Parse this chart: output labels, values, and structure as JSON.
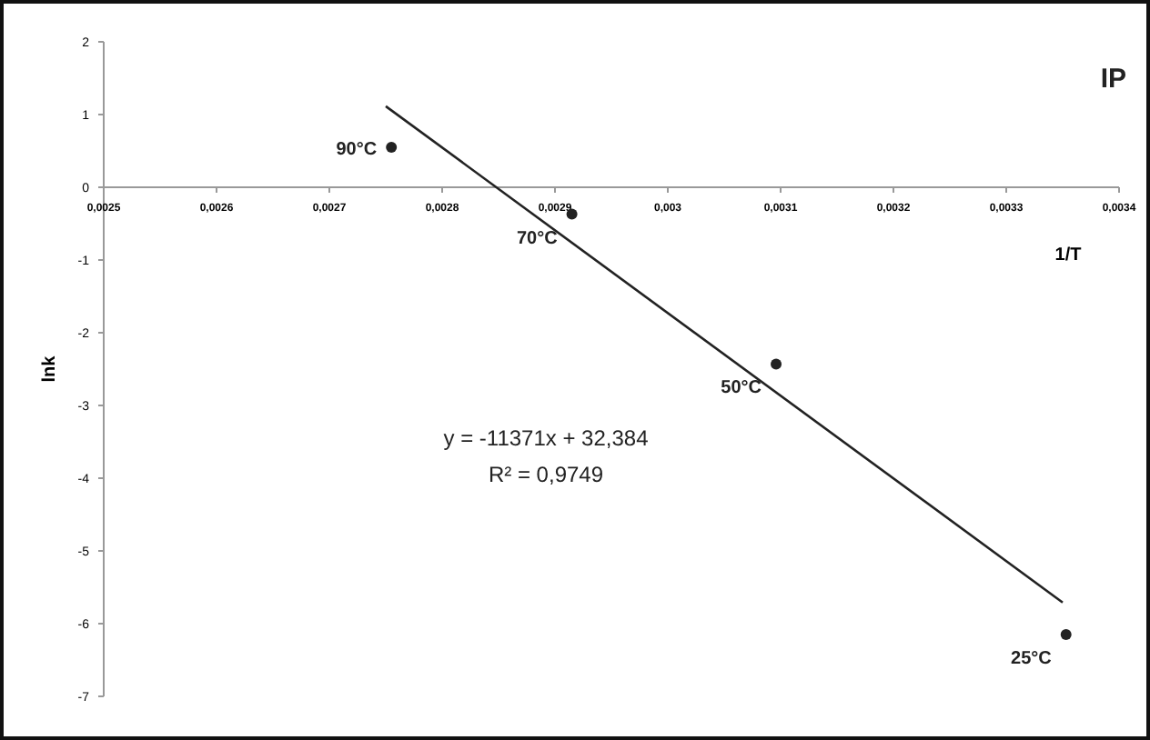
{
  "chart_data": {
    "type": "scatter",
    "title": "IP",
    "xlabel": "1/T",
    "ylabel": "lnk",
    "xlim": [
      0.0025,
      0.0034
    ],
    "xticks": [
      {
        "value": 0.0025,
        "label": "0,0025"
      },
      {
        "value": 0.0026,
        "label": "0,0026"
      },
      {
        "value": 0.0027,
        "label": "0,0027"
      },
      {
        "value": 0.0028,
        "label": "0,0028"
      },
      {
        "value": 0.0029,
        "label": "0,0029"
      },
      {
        "value": 0.003,
        "label": "0,003"
      },
      {
        "value": 0.0031,
        "label": "0,0031"
      },
      {
        "value": 0.0032,
        "label": "0,0032"
      },
      {
        "value": 0.0033,
        "label": "0,0033"
      },
      {
        "value": 0.0034,
        "label": "0,0034"
      }
    ],
    "ylim": [
      -7,
      2
    ],
    "yticks": [
      2,
      1,
      0,
      -1,
      -2,
      -3,
      -4,
      -5,
      -6,
      -7
    ],
    "grid": false,
    "marker": "circle",
    "series": [
      {
        "color": "#222222",
        "x": [
          0.002755,
          0.002915,
          0.003096,
          0.003353
        ],
        "values": [
          0.55,
          -0.37,
          -2.43,
          -6.15
        ]
      },
      {
        "type": "line",
        "color": "#222222",
        "x": [
          0.00275,
          0.00335
        ],
        "values": [
          1.114,
          -5.709
        ],
        "marker": "none",
        "line_style": "solid"
      }
    ],
    "annotations": [
      {
        "text": "90°C",
        "x": 0.002755,
        "y": 0.55
      },
      {
        "text": "70°C",
        "x": 0.002915,
        "y": -0.37
      },
      {
        "text": "50°C",
        "x": 0.003096,
        "y": -2.43
      },
      {
        "text": "25°C",
        "x": 0.003353,
        "y": -6.15
      },
      "y = -11371x + 32,384",
      "R² = 0,9749"
    ]
  }
}
